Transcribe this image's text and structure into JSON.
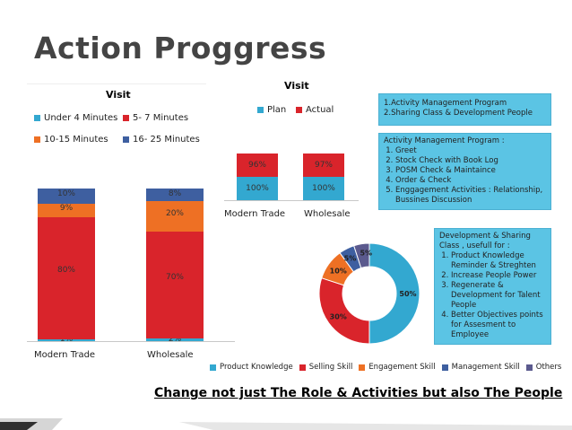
{
  "page": {
    "title": "Action Proggress",
    "tagline": "Change not just The Role & Activities but also The People"
  },
  "colors": {
    "blue": "#33a8d0",
    "red": "#d9242b",
    "orange": "#ee7024",
    "darkblue": "#3e5fa0",
    "purple": "#5b5a8e",
    "box": "#5bc4e4"
  },
  "chart_data": [
    {
      "type": "bar",
      "stacked": true,
      "percent": true,
      "title": "Visit",
      "categories": [
        "Modern Trade",
        "Wholesale"
      ],
      "series": [
        {
          "name": "Under 4 Minutes",
          "values": [
            1,
            2
          ],
          "labels": [
            "1%",
            "2%"
          ]
        },
        {
          "name": "5- 7 Minutes",
          "values": [
            80,
            70
          ],
          "labels": [
            "80%",
            "70%"
          ]
        },
        {
          "name": "10-15 Minutes",
          "values": [
            9,
            20
          ],
          "labels": [
            "9%",
            "20%"
          ]
        },
        {
          "name": "16- 25 Minutes",
          "values": [
            10,
            8
          ],
          "labels": [
            "10%",
            "8%"
          ]
        }
      ],
      "legend": "top",
      "grid": false
    },
    {
      "type": "bar",
      "stacked": true,
      "percent": true,
      "title": "Visit",
      "categories": [
        "Modern Trade",
        "Wholesale"
      ],
      "series": [
        {
          "name": "Plan",
          "values": [
            100,
            100
          ],
          "labels": [
            "100%",
            "100%"
          ]
        },
        {
          "name": "Actual",
          "values": [
            96,
            97
          ],
          "labels": [
            "96%",
            "97%"
          ]
        }
      ],
      "legend": "top",
      "grid": false
    },
    {
      "type": "pie",
      "donut": true,
      "title": "",
      "categories": [
        "Product Knowledge",
        "Selling Skill",
        "Engagement Skill",
        "Management Skill",
        "Others"
      ],
      "values": [
        50,
        30,
        10,
        5,
        5
      ],
      "labels": [
        "50%",
        "30%",
        "10%",
        "5%",
        "5%"
      ],
      "legend": "bottom"
    }
  ],
  "boxes": {
    "programs": [
      "1.Activity Management  Program",
      "2.Sharing Class & Development People"
    ],
    "activity": {
      "title": "Activity Management Program :",
      "items": [
        "Greet",
        "Stock Check with Book Log",
        "POSM Check & Maintaince",
        "Order & Check",
        "Enggagement Activities : Relationship, Bussines Discussion"
      ]
    },
    "development": {
      "title": "Development & Sharing Class , usefull for :",
      "items": [
        "Product Knowledge Reminder & Streghten",
        "Increase People Power",
        "Regenerate & Development for Talent People",
        "Better Objectives points for Assesment to Employee"
      ]
    }
  }
}
